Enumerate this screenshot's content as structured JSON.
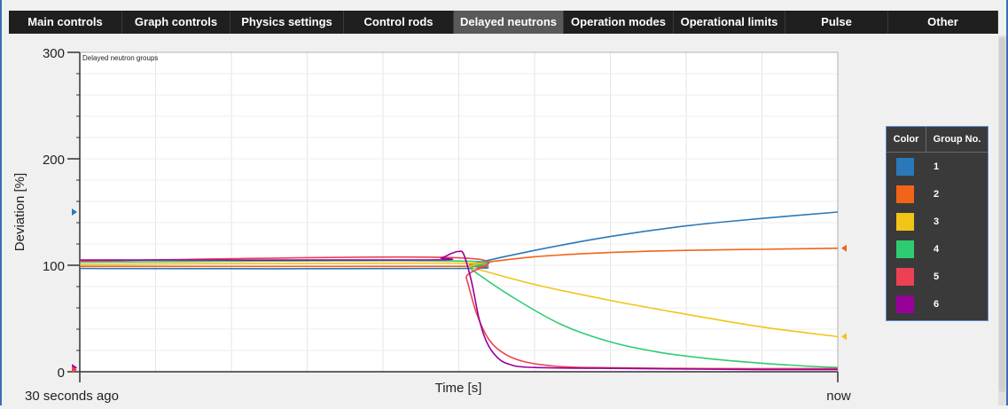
{
  "tabs": [
    {
      "label": "Main controls",
      "active": false
    },
    {
      "label": "Graph controls",
      "active": false
    },
    {
      "label": "Physics settings",
      "active": false
    },
    {
      "label": "Control rods",
      "active": false
    },
    {
      "label": "Delayed neutrons",
      "active": true
    },
    {
      "label": "Operation modes",
      "active": false
    },
    {
      "label": "Operational limits",
      "active": false
    },
    {
      "label": "Pulse",
      "active": false
    },
    {
      "label": "Other",
      "active": false
    }
  ],
  "colors": {
    "tab_bar": "#1f1f1f",
    "tab_active": "#595959",
    "legend_bg": "#3a3a3a",
    "legend_border": "#5b8fd0",
    "window_border": "#3b6fb0"
  },
  "legend": {
    "col_color": "Color",
    "col_group": "Group No."
  },
  "chart_data": {
    "type": "line",
    "title": "Delayed neutron groups",
    "xlabel": "Time [s]",
    "ylabel": "Deviation [%]",
    "x_tick_labels": [
      "30 seconds ago",
      "now"
    ],
    "y_ticks": [
      0,
      100,
      200,
      300
    ],
    "ylim": [
      0,
      300
    ],
    "xlim": [
      -30,
      0
    ],
    "grid": true,
    "legend_position": "right",
    "series": [
      {
        "name": "1",
        "color": "#2a78b8",
        "x": [
          -30,
          -15,
          -14.5,
          -12,
          -9,
          -6,
          -3,
          0
        ],
        "y": [
          97,
          97,
          101,
          114,
          127,
          137,
          144,
          150
        ]
      },
      {
        "name": "2",
        "color": "#f26419",
        "x": [
          -30,
          -15,
          -14.5,
          -12,
          -9,
          -6,
          -3,
          0
        ],
        "y": [
          99,
          99,
          101,
          108,
          112,
          114,
          115,
          116
        ]
      },
      {
        "name": "3",
        "color": "#f2c416",
        "x": [
          -30,
          -15,
          -14.5,
          -12,
          -9,
          -6,
          -3,
          0
        ],
        "y": [
          101,
          102,
          98,
          82,
          67,
          54,
          42,
          33
        ]
      },
      {
        "name": "4",
        "color": "#2ecc71",
        "x": [
          -30,
          -15,
          -14.5,
          -13,
          -11,
          -9,
          -7,
          -5,
          -3,
          -1,
          0
        ],
        "y": [
          103,
          104,
          96,
          72,
          45,
          28,
          18,
          12,
          8,
          5,
          4
        ]
      },
      {
        "name": "5",
        "color": "#ee4055",
        "x": [
          -30,
          -15,
          -14.7,
          -14.3,
          -13.8,
          -13.2,
          -12.5,
          -11.5,
          -10,
          -5,
          0
        ],
        "y": [
          104,
          107,
          88,
          55,
          30,
          17,
          10,
          6,
          4,
          3,
          3
        ]
      },
      {
        "name": "6",
        "color": "#990099",
        "x": [
          -30,
          -16.5,
          -15.7,
          -15.3,
          -15.0,
          -14.8,
          -14.5,
          -14.2,
          -13.9,
          -13.5,
          -13.0,
          -12,
          -8,
          -3,
          0
        ],
        "y": [
          105,
          105,
          107,
          111,
          113,
          110,
          85,
          50,
          28,
          14,
          7,
          4,
          3,
          2,
          2
        ]
      }
    ]
  }
}
